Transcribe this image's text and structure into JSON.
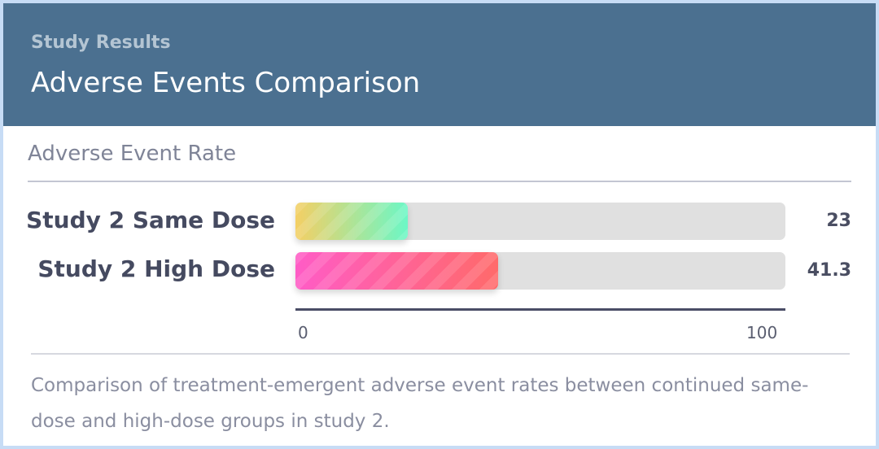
{
  "header": {
    "eyebrow": "Study Results",
    "title": "Adverse Events Comparison"
  },
  "section_label": "Adverse Event Rate",
  "footnote": "Comparison of treatment-emergent adverse event rates between continued same-dose and high-dose groups in study 2.",
  "colors": {
    "header_bg": "#4b7090",
    "track": "#e0e0e0",
    "series_a_gradient": [
      "#f4cf64",
      "#6cf7c6"
    ],
    "series_b_gradient": [
      "#ff5cc6",
      "#ff6a6a"
    ]
  },
  "chart_data": {
    "type": "bar",
    "orientation": "horizontal",
    "title": "Adverse Event Rate",
    "categories": [
      "Study 2 Same Dose",
      "Study 2 High Dose"
    ],
    "values": [
      23,
      41.3
    ],
    "value_labels": [
      "23",
      "41.3"
    ],
    "xlim": [
      0,
      100
    ],
    "tick_labels": [
      "0",
      "100"
    ],
    "grid": false
  }
}
